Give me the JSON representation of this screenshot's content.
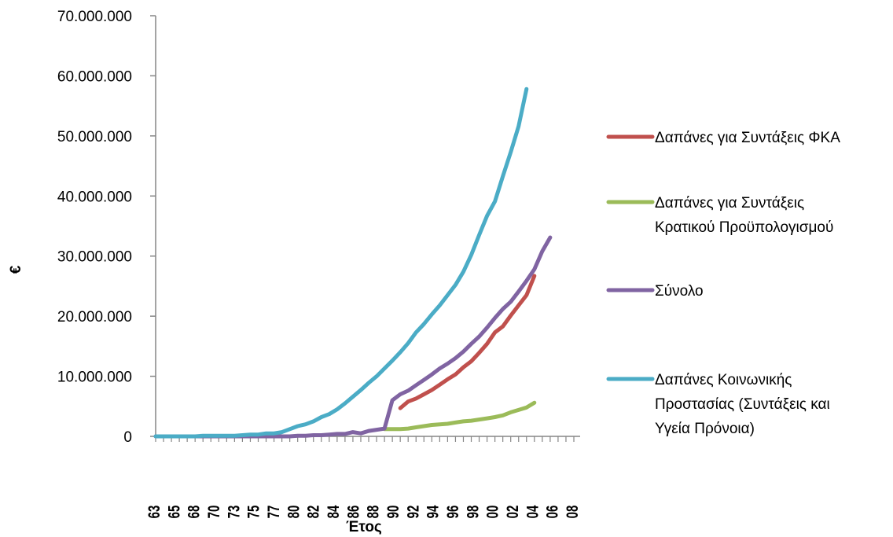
{
  "chart_data": {
    "type": "line",
    "xlabel": "Έτος",
    "ylabel": "€",
    "ylim": [
      0,
      70000000
    ],
    "yticks": [
      "0",
      "10.000.000",
      "20.000.000",
      "30.000.000",
      "40.000.000",
      "50.000.000",
      "60.000.000",
      "70.000.000"
    ],
    "xtick_labels": [
      "63",
      "65",
      "68",
      "70",
      "73",
      "75",
      "77",
      "80",
      "82",
      "84",
      "86",
      "88",
      "90",
      "92",
      "94",
      "96",
      "98",
      "00",
      "02",
      "04",
      "06",
      "08"
    ],
    "grid": false,
    "legend_position": "right",
    "n_points": 54,
    "series": [
      {
        "name": "Δαπάνες για Συντάξεις ΦΚΑ",
        "color": "#c0504d",
        "start_index": 31,
        "values": [
          4700000,
          5800000,
          6300000,
          7000000,
          7700000,
          8600000,
          9500000,
          10300000,
          11500000,
          12500000,
          13900000,
          15400000,
          17300000,
          18300000,
          20100000,
          21800000,
          23500000,
          26700000
        ]
      },
      {
        "name": "Δαπάνες για Συντάξεις Κρατικού Προϋπολογισμού",
        "color": "#9bbb59",
        "start_index": 29,
        "values": [
          1200000,
          1200000,
          1200000,
          1300000,
          1500000,
          1700000,
          1900000,
          2000000,
          2100000,
          2300000,
          2500000,
          2600000,
          2800000,
          3000000,
          3200000,
          3500000,
          4000000,
          4400000,
          4800000,
          5600000
        ]
      },
      {
        "name": "Σύνολο",
        "color": "#8064a2",
        "start_index": 0,
        "values": [
          0,
          0,
          0,
          0,
          0,
          0,
          0,
          0,
          0,
          0,
          0,
          0,
          0,
          0,
          0,
          0,
          0,
          0,
          100000,
          100000,
          200000,
          200000,
          300000,
          400000,
          400000,
          700000,
          500000,
          900000,
          1100000,
          1300000,
          6000000,
          7000000,
          7600000,
          8500000,
          9400000,
          10300000,
          11300000,
          12100000,
          13000000,
          14100000,
          15400000,
          16600000,
          18100000,
          19700000,
          21200000,
          22400000,
          24100000,
          25900000,
          27800000,
          30800000,
          33100000
        ]
      },
      {
        "name": "Δαπάνες Κοινωνικής Προστασίας (Συντάξεις και Υγεία Πρόνοια)",
        "color": "#4bacc6",
        "start_index": 0,
        "values": [
          0,
          0,
          0,
          0,
          0,
          0,
          100000,
          100000,
          100000,
          100000,
          100000,
          200000,
          300000,
          300000,
          500000,
          500000,
          700000,
          1200000,
          1700000,
          2000000,
          2500000,
          3200000,
          3700000,
          4500000,
          5500000,
          6600000,
          7700000,
          8900000,
          10000000,
          11300000,
          12600000,
          14000000,
          15500000,
          17300000,
          18700000,
          20300000,
          21800000,
          23500000,
          25200000,
          27400000,
          30200000,
          33500000,
          36700000,
          39100000,
          43300000,
          47300000,
          51600000,
          57800000
        ]
      }
    ]
  }
}
